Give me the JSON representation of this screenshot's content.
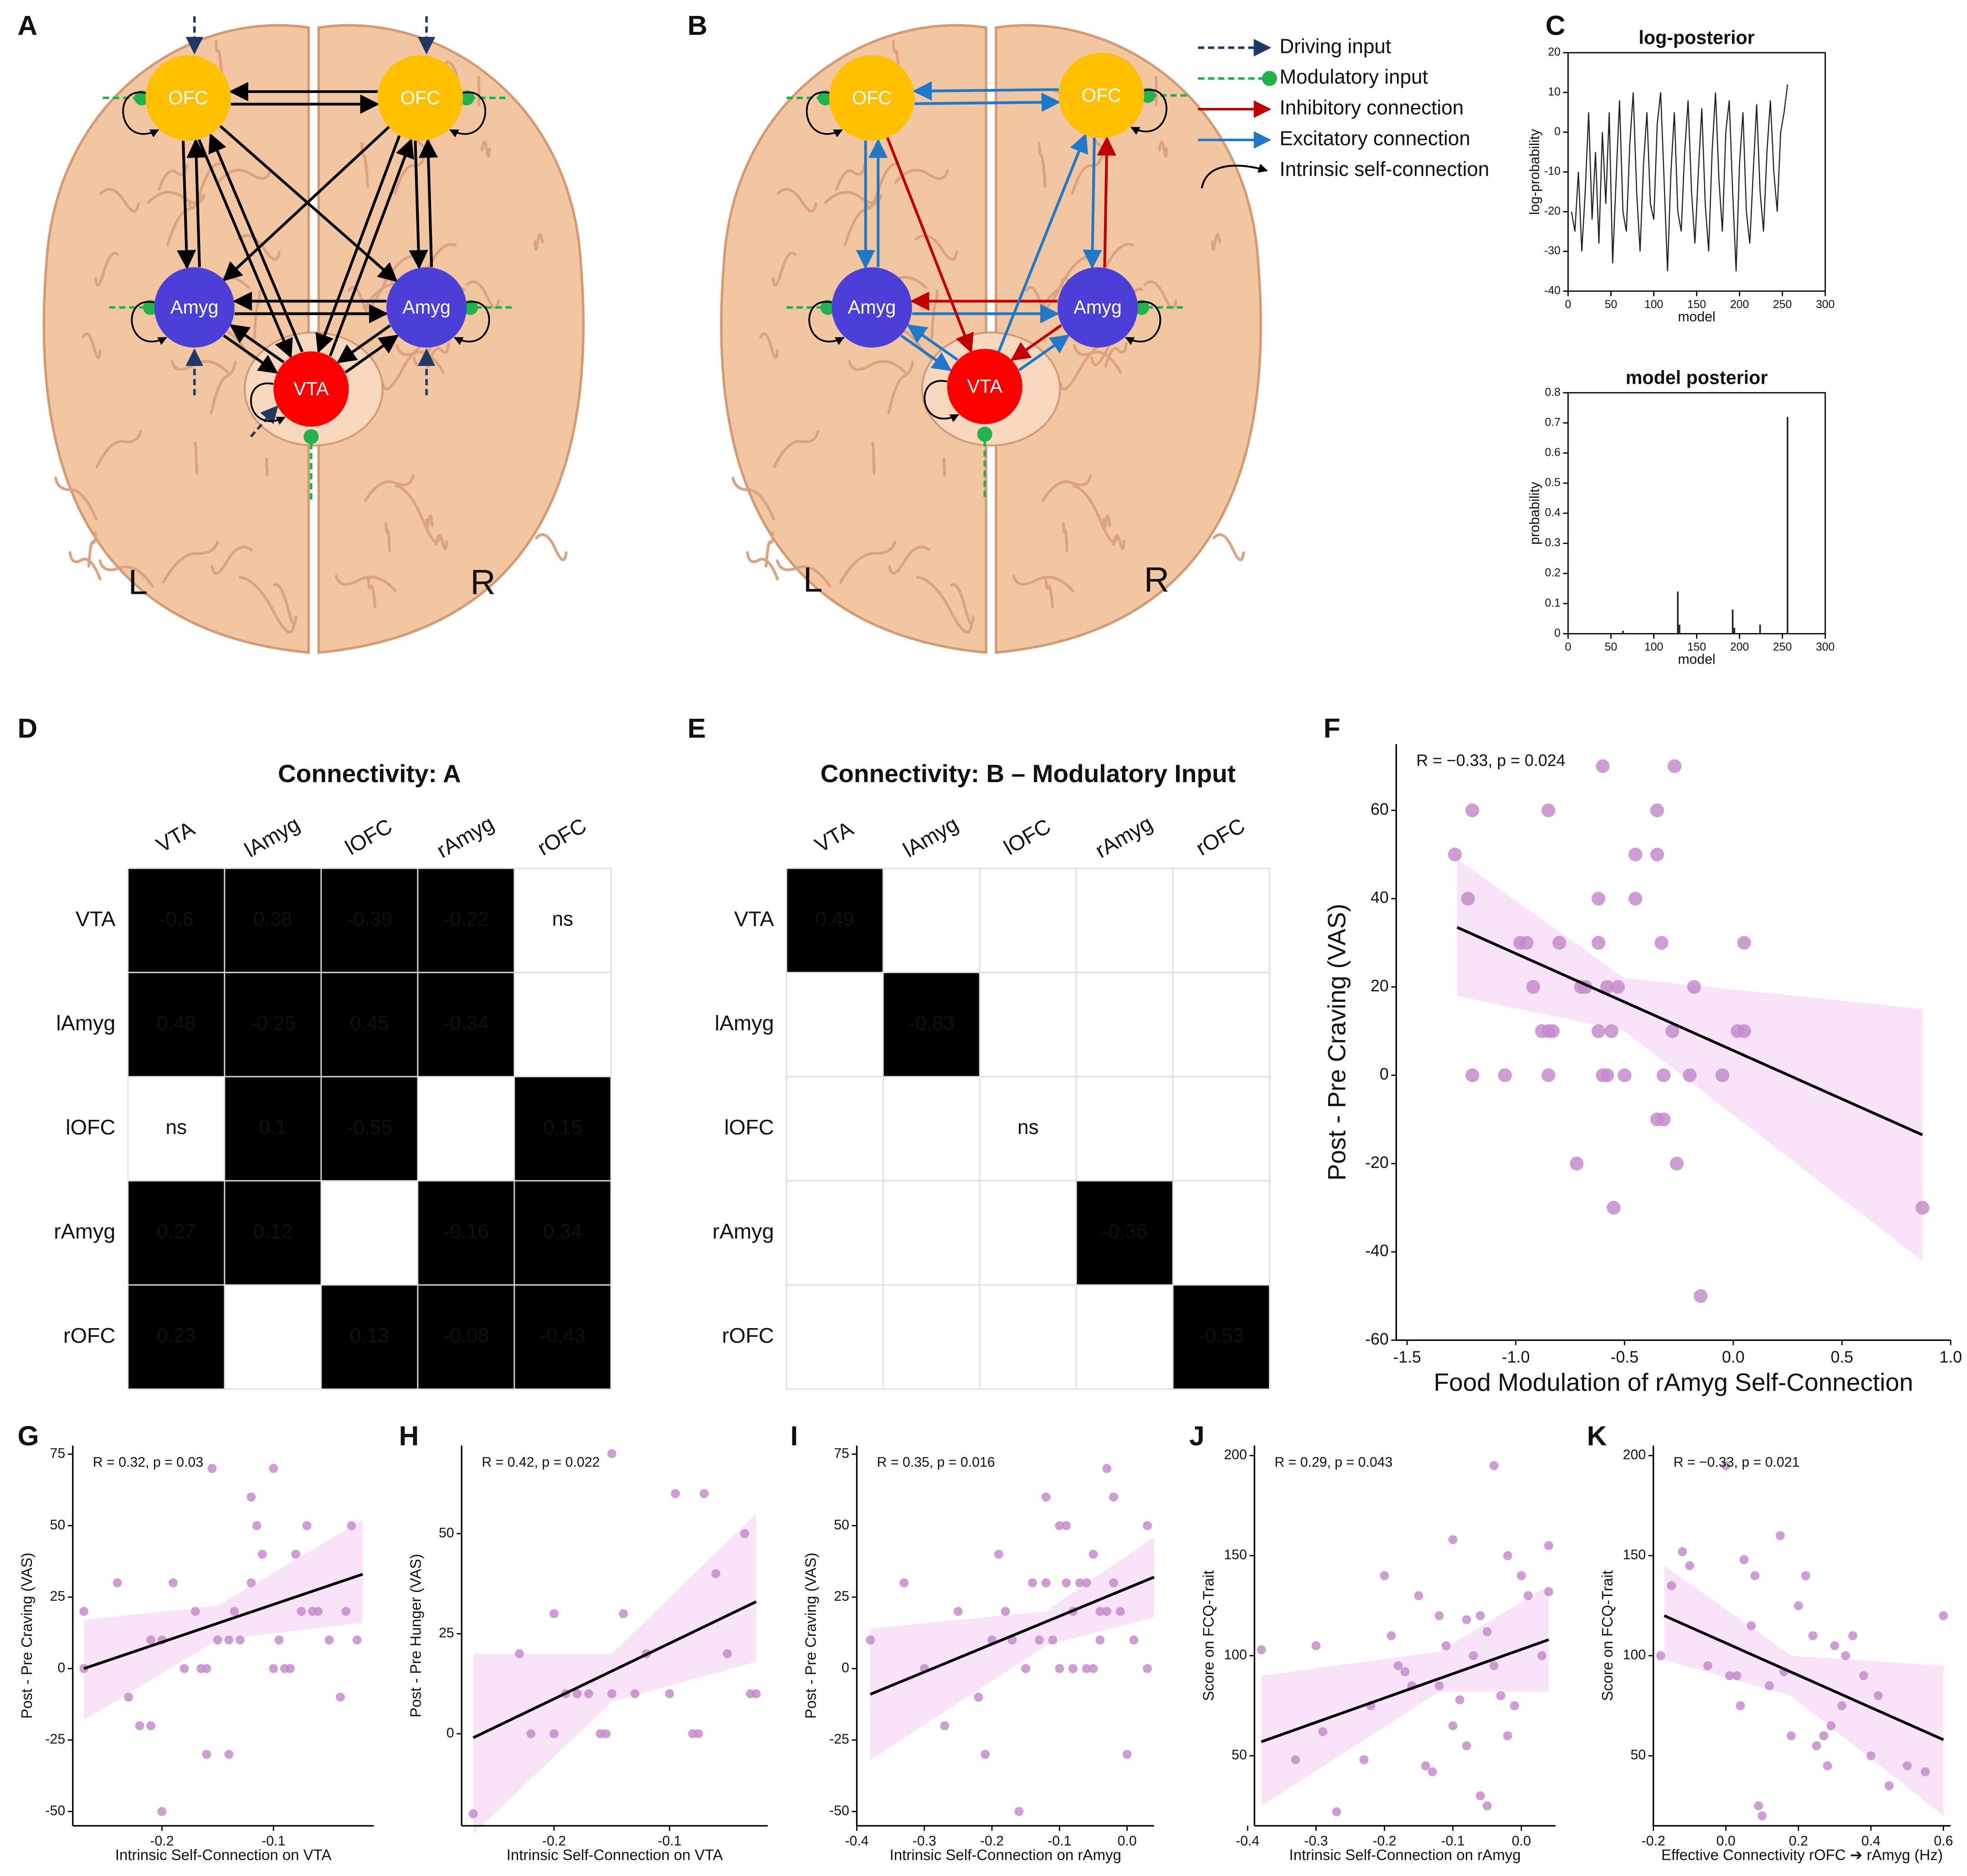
{
  "panel_labels": [
    "A",
    "B",
    "C",
    "D",
    "E",
    "F",
    "G",
    "H",
    "I",
    "J",
    "K"
  ],
  "diagram_a": {
    "nodes": [
      "OFC",
      "OFC",
      "Amyg",
      "Amyg",
      "VTA"
    ],
    "hemispheres": [
      "L",
      "R"
    ]
  },
  "diagram_b": {
    "nodes": [
      "OFC",
      "OFC",
      "Amyg",
      "Amyg",
      "VTA"
    ],
    "hemispheres": [
      "L",
      "R"
    ],
    "legend": [
      "Driving input",
      "Modulatory input",
      "Inhibitory connection",
      "Excitatory connection",
      "Intrinsic self-connection"
    ]
  },
  "chart_data": [
    {
      "type": "line",
      "title": "log-posterior",
      "ylabel": "log-probability",
      "xlabel": "model",
      "color": "#222222",
      "x": [
        4,
        8,
        12,
        16,
        20,
        24,
        28,
        32,
        36,
        40,
        44,
        48,
        52,
        56,
        60,
        64,
        68,
        72,
        76,
        80,
        84,
        88,
        92,
        96,
        100,
        104,
        108,
        112,
        116,
        120,
        124,
        128,
        132,
        136,
        140,
        144,
        148,
        152,
        156,
        160,
        164,
        168,
        172,
        176,
        180,
        184,
        188,
        192,
        196,
        200,
        204,
        208,
        212,
        216,
        220,
        224,
        228,
        232,
        236,
        240,
        244,
        248,
        252,
        256
      ],
      "values": [
        -20,
        -25,
        -10,
        -30,
        -15,
        5,
        -22,
        -5,
        -28,
        0,
        -18,
        5,
        -33,
        -12,
        8,
        -20,
        -25,
        -3,
        10,
        -15,
        -30,
        -8,
        5,
        -18,
        -22,
        2,
        10,
        -12,
        -35,
        -10,
        5,
        -20,
        -25,
        -5,
        8,
        -15,
        -28,
        -10,
        6,
        -18,
        -30,
        -5,
        10,
        -12,
        -25,
        0,
        8,
        -15,
        -35,
        -8,
        5,
        -20,
        -28,
        -10,
        7,
        -15,
        -25,
        -5,
        8,
        -10,
        -20,
        0,
        5,
        12
      ],
      "xlim": [
        0,
        300
      ],
      "xticks": [
        0,
        50,
        100,
        150,
        200,
        250,
        300
      ],
      "ylim": [
        -40,
        20
      ],
      "yticks": [
        -40,
        -30,
        -20,
        -10,
        0,
        10,
        20
      ]
    },
    {
      "type": "bar",
      "title": "model posterior",
      "ylabel": "probability",
      "xlabel": "model",
      "color": "#222222",
      "x": [
        64,
        128,
        130,
        192,
        194,
        224,
        256
      ],
      "values": [
        0.01,
        0.14,
        0.03,
        0.08,
        0.02,
        0.03,
        0.72
      ],
      "xlim": [
        0,
        300
      ],
      "xticks": [
        0,
        50,
        100,
        150,
        200,
        250,
        300
      ],
      "ylim": [
        0,
        0.8
      ],
      "yticks": [
        0,
        0.1,
        0.2,
        0.3,
        0.4,
        0.5,
        0.6,
        0.7,
        0.8
      ]
    },
    {
      "type": "heatmap",
      "title": "Connectivity: A",
      "colormap": "RdBu",
      "columns": [
        "VTA",
        "lAmyg",
        "lOFC",
        "rAmyg",
        "rOFC"
      ],
      "rows": [
        "VTA",
        "lAmyg",
        "lOFC",
        "rAmyg",
        "rOFC"
      ],
      "values": [
        [
          -0.6,
          0.38,
          -0.39,
          -0.22,
          null
        ],
        [
          0.48,
          -0.25,
          0.45,
          -0.34,
          null
        ],
        [
          null,
          0.1,
          -0.55,
          null,
          0.15
        ],
        [
          0.27,
          0.12,
          null,
          -0.16,
          0.34
        ],
        [
          0.23,
          null,
          0.13,
          -0.08,
          -0.43
        ]
      ],
      "value_labels": [
        [
          null,
          null,
          null,
          null,
          "ns"
        ],
        [
          null,
          null,
          null,
          null,
          null
        ],
        [
          "ns",
          null,
          null,
          null,
          null
        ],
        [
          null,
          null,
          null,
          null,
          null
        ],
        [
          null,
          null,
          null,
          null,
          null
        ]
      ]
    },
    {
      "type": "heatmap",
      "title": "Connectivity: B – Modulatory Input",
      "colormap": "RdBu",
      "columns": [
        "VTA",
        "lAmyg",
        "lOFC",
        "rAmyg",
        "rOFC"
      ],
      "rows": [
        "VTA",
        "lAmyg",
        "lOFC",
        "rAmyg",
        "rOFC"
      ],
      "values": [
        [
          0.49,
          null,
          null,
          null,
          null
        ],
        [
          null,
          -0.83,
          null,
          null,
          null
        ],
        [
          null,
          null,
          null,
          null,
          null
        ],
        [
          null,
          null,
          null,
          -0.36,
          null
        ],
        [
          null,
          null,
          null,
          null,
          -0.53
        ]
      ],
      "value_labels": [
        [
          null,
          null,
          null,
          null,
          null
        ],
        [
          null,
          null,
          null,
          null,
          null
        ],
        [
          null,
          null,
          "ns",
          null,
          null
        ],
        [
          null,
          null,
          null,
          null,
          null
        ],
        [
          null,
          null,
          null,
          null,
          null
        ]
      ]
    },
    {
      "type": "scatter",
      "annotation": "R = −0.33, p = 0.024",
      "xlabel": "Food Modulation of rAmyg Self-Connection",
      "ylabel": "Post - Pre Craving (VAS)",
      "color": "#c48ccc",
      "band_color": "#f8def8",
      "x": [
        -1.28,
        -1.22,
        -1.2,
        -1.2,
        -1.05,
        -0.98,
        -0.95,
        -0.92,
        -0.88,
        -0.85,
        -0.83,
        -0.85,
        -0.85,
        -0.8,
        -0.72,
        -0.7,
        -0.68,
        -0.62,
        -0.62,
        -0.62,
        -0.6,
        -0.6,
        -0.58,
        -0.58,
        -0.56,
        -0.55,
        -0.53,
        -0.5,
        -0.45,
        -0.45,
        -0.35,
        -0.35,
        -0.33,
        -0.35,
        -0.32,
        -0.32,
        -0.27,
        -0.28,
        -0.26,
        -0.2,
        -0.18,
        -0.15,
        -0.05,
        0.02,
        0.05,
        0.05,
        0.87
      ],
      "values": [
        50,
        40,
        60,
        0,
        0,
        30,
        30,
        20,
        10,
        10,
        10,
        60,
        0,
        30,
        -20,
        20,
        20,
        40,
        30,
        10,
        70,
        0,
        0,
        20,
        10,
        -30,
        20,
        0,
        40,
        50,
        60,
        50,
        30,
        -10,
        -10,
        0,
        70,
        10,
        -20,
        0,
        20,
        -50,
        0,
        10,
        30,
        10,
        -30
      ],
      "fit": {
        "x": [
          -1.27,
          0.87
        ],
        "values": [
          33.5,
          -13.5
        ]
      },
      "band": {
        "x": [
          -1.27,
          -0.5,
          0.87
        ],
        "lower": [
          18,
          10,
          -42
        ],
        "upper": [
          49,
          22,
          15
        ]
      },
      "xlim": [
        -1.55,
        1.0
      ],
      "xticks": [
        {
          "value": -1.5,
          "label": "-1.5"
        },
        {
          "value": -1,
          "label": "-1.0"
        },
        -0.5,
        {
          "value": 0,
          "label": "0.0"
        },
        0.5,
        {
          "value": 1,
          "label": "1.0"
        }
      ],
      "ylim": [
        -60,
        75
      ],
      "yticks": [
        -60,
        -40,
        -20,
        0,
        20,
        40,
        60
      ]
    },
    {
      "type": "scatter",
      "annotation": "R = 0.32, p = 0.03",
      "xlabel": "Intrinsic Self-Connection on VTA",
      "ylabel": "Post - Pre Craving (VAS)",
      "color": "#c48ccc",
      "band_color": "#f8def8",
      "x": [
        -0.27,
        -0.27,
        -0.24,
        -0.23,
        -0.22,
        -0.21,
        -0.21,
        -0.2,
        -0.2,
        -0.19,
        -0.18,
        -0.17,
        -0.165,
        -0.16,
        -0.16,
        -0.155,
        -0.15,
        -0.14,
        -0.14,
        -0.135,
        -0.13,
        -0.12,
        -0.12,
        -0.115,
        -0.11,
        -0.1,
        -0.1,
        -0.095,
        -0.09,
        -0.085,
        -0.08,
        -0.075,
        -0.07,
        -0.065,
        -0.06,
        -0.05,
        -0.04,
        -0.035,
        -0.03,
        -0.025
      ],
      "values": [
        20,
        0,
        30,
        -10,
        -20,
        10,
        -20,
        -50,
        10,
        30,
        0,
        20,
        0,
        0,
        -30,
        70,
        10,
        10,
        -30,
        20,
        10,
        30,
        60,
        50,
        40,
        70,
        0,
        10,
        0,
        0,
        40,
        20,
        50,
        20,
        20,
        10,
        -10,
        20,
        50,
        10
      ],
      "fit": {
        "x": [
          -0.27,
          -0.02
        ],
        "values": [
          0,
          33
        ]
      },
      "band": {
        "x": [
          -0.27,
          -0.15,
          -0.02
        ],
        "lower": [
          -18,
          10,
          16
        ],
        "upper": [
          17,
          22,
          52
        ]
      },
      "xlim": [
        -0.28,
        -0.01
      ],
      "xticks": [
        -0.2,
        -0.1
      ],
      "ylim": [
        -55,
        78
      ],
      "yticks": [
        -50,
        -25,
        0,
        25,
        50,
        75
      ]
    },
    {
      "type": "scatter",
      "annotation": "R = 0.42, p = 0.022",
      "xlabel": "Intrinsic Self-Connection on VTA",
      "ylabel": "Post - Pre Hunger (VAS)",
      "color": "#c48ccc",
      "band_color": "#f8def8",
      "x": [
        -0.27,
        -0.23,
        -0.22,
        -0.2,
        -0.2,
        -0.19,
        -0.18,
        -0.17,
        -0.16,
        -0.155,
        -0.15,
        -0.15,
        -0.14,
        -0.13,
        -0.12,
        -0.1,
        -0.095,
        -0.08,
        -0.075,
        -0.07,
        -0.06,
        -0.05,
        -0.035,
        -0.03,
        -0.025
      ],
      "values": [
        -20,
        20,
        0,
        30,
        0,
        10,
        10,
        10,
        0,
        0,
        10,
        70,
        30,
        10,
        20,
        10,
        60,
        0,
        0,
        60,
        40,
        20,
        50,
        10,
        10
      ],
      "fit": {
        "x": [
          -0.27,
          -0.025
        ],
        "values": [
          -1,
          33
        ]
      },
      "band": {
        "x": [
          -0.27,
          -0.15,
          -0.025
        ],
        "lower": [
          -25,
          8,
          18
        ],
        "upper": [
          20,
          20,
          55
        ]
      },
      "xlim": [
        -0.28,
        -0.015
      ],
      "xticks": [
        -0.2,
        -0.1
      ],
      "ylim": [
        -23,
        72
      ],
      "yticks": [
        0,
        25,
        50
      ]
    },
    {
      "type": "scatter",
      "annotation": "R = 0.35, p = 0.016",
      "xlabel": "Intrinsic Self-Connection on rAmyg",
      "ylabel": "Post - Pre Craving (VAS)",
      "color": "#c48ccc",
      "band_color": "#f8def8",
      "x": [
        -0.38,
        -0.33,
        -0.3,
        -0.27,
        -0.25,
        -0.22,
        -0.21,
        -0.2,
        -0.19,
        -0.18,
        -0.17,
        -0.16,
        -0.15,
        -0.14,
        -0.13,
        -0.12,
        -0.12,
        -0.11,
        -0.1,
        -0.1,
        -0.09,
        -0.09,
        -0.08,
        -0.08,
        -0.07,
        -0.06,
        -0.06,
        -0.05,
        -0.05,
        -0.04,
        -0.04,
        -0.03,
        -0.03,
        -0.02,
        -0.02,
        -0.01,
        0,
        0.01,
        0.03,
        0.03
      ],
      "values": [
        10,
        30,
        0,
        -20,
        20,
        -10,
        -30,
        10,
        40,
        20,
        10,
        -50,
        0,
        30,
        10,
        30,
        60,
        10,
        50,
        0,
        30,
        50,
        0,
        20,
        30,
        0,
        30,
        40,
        0,
        20,
        10,
        70,
        20,
        30,
        60,
        20,
        -30,
        10,
        50,
        0
      ],
      "fit": {
        "x": [
          -0.38,
          0.04
        ],
        "values": [
          -9,
          32
        ]
      },
      "band": {
        "x": [
          -0.38,
          -0.12,
          0.04
        ],
        "lower": [
          -32,
          8,
          18
        ],
        "upper": [
          14,
          20,
          46
        ]
      },
      "xlim": [
        -0.4,
        0.04
      ],
      "xticks": [
        -0.4,
        -0.3,
        -0.2,
        -0.1,
        {
          "value": 0,
          "label": "0.0"
        }
      ],
      "ylim": [
        -55,
        78
      ],
      "yticks": [
        -50,
        -25,
        0,
        25,
        50,
        75
      ]
    },
    {
      "type": "scatter",
      "annotation": "R = 0.29, p = 0.043",
      "xlabel": "Intrinsic Self-Connection on rAmyg",
      "ylabel": "Score on FCQ-Trait",
      "color": "#c48ccc",
      "band_color": "#f8def8",
      "x": [
        -0.38,
        -0.33,
        -0.3,
        -0.29,
        -0.27,
        -0.23,
        -0.22,
        -0.2,
        -0.19,
        -0.18,
        -0.17,
        -0.16,
        -0.15,
        -0.14,
        -0.13,
        -0.12,
        -0.12,
        -0.11,
        -0.1,
        -0.1,
        -0.09,
        -0.08,
        -0.08,
        -0.07,
        -0.06,
        -0.06,
        -0.05,
        -0.05,
        -0.04,
        -0.04,
        -0.03,
        -0.02,
        -0.02,
        -0.01,
        0,
        0.01,
        0.03,
        0.04,
        0.04
      ],
      "values": [
        103,
        48,
        105,
        62,
        22,
        48,
        75,
        140,
        110,
        95,
        92,
        85,
        130,
        45,
        42,
        85,
        120,
        105,
        158,
        65,
        78,
        118,
        55,
        100,
        120,
        30,
        112,
        25,
        195,
        95,
        80,
        150,
        60,
        75,
        140,
        130,
        100,
        155,
        132
      ],
      "fit": {
        "x": [
          -0.38,
          0.04
        ],
        "values": [
          57,
          108
        ]
      },
      "band": {
        "x": [
          -0.38,
          -0.12,
          0.04
        ],
        "lower": [
          25,
          82,
          82
        ],
        "upper": [
          90,
          102,
          135
        ]
      },
      "xlim": [
        -0.39,
        0.05
      ],
      "xticks": [
        -0.4,
        -0.3,
        -0.2,
        -0.1,
        {
          "value": 0,
          "label": "0.0"
        }
      ],
      "ylim": [
        15,
        205
      ],
      "yticks": [
        50,
        100,
        150,
        200
      ]
    },
    {
      "type": "scatter",
      "annotation": "R = −0.33, p = 0.021",
      "xlabel": "Effective Connectivity rOFC ➔ rAmyg (Hz)",
      "ylabel": "Score on FCQ-Trait",
      "color": "#c48ccc",
      "band_color": "#f8def8",
      "x": [
        -0.18,
        -0.15,
        -0.12,
        -0.1,
        -0.05,
        0,
        0.01,
        0.03,
        0.04,
        0.05,
        0.07,
        0.08,
        0.09,
        0.1,
        0.12,
        0.15,
        0.16,
        0.18,
        0.2,
        0.22,
        0.24,
        0.25,
        0.27,
        0.28,
        0.29,
        0.3,
        0.32,
        0.33,
        0.35,
        0.38,
        0.4,
        0.42,
        0.45,
        0.5,
        0.55,
        0.6
      ],
      "values": [
        100,
        135,
        152,
        145,
        95,
        195,
        90,
        90,
        75,
        148,
        115,
        140,
        25,
        20,
        85,
        160,
        92,
        60,
        125,
        140,
        110,
        55,
        60,
        45,
        65,
        105,
        75,
        100,
        110,
        90,
        50,
        80,
        35,
        45,
        42,
        120
      ],
      "fit": {
        "x": [
          -0.17,
          0.6
        ],
        "values": [
          120,
          58
        ]
      },
      "band": {
        "x": [
          -0.17,
          0.18,
          0.6
        ],
        "lower": [
          98,
          80,
          20
        ],
        "upper": [
          145,
          100,
          95
        ]
      },
      "xlim": [
        -0.2,
        0.62
      ],
      "xticks": [
        -0.2,
        {
          "value": 0,
          "label": "0.0"
        },
        0.2,
        0.4,
        0.6
      ],
      "ylim": [
        15,
        205
      ],
      "yticks": [
        50,
        100,
        150,
        200
      ]
    }
  ]
}
